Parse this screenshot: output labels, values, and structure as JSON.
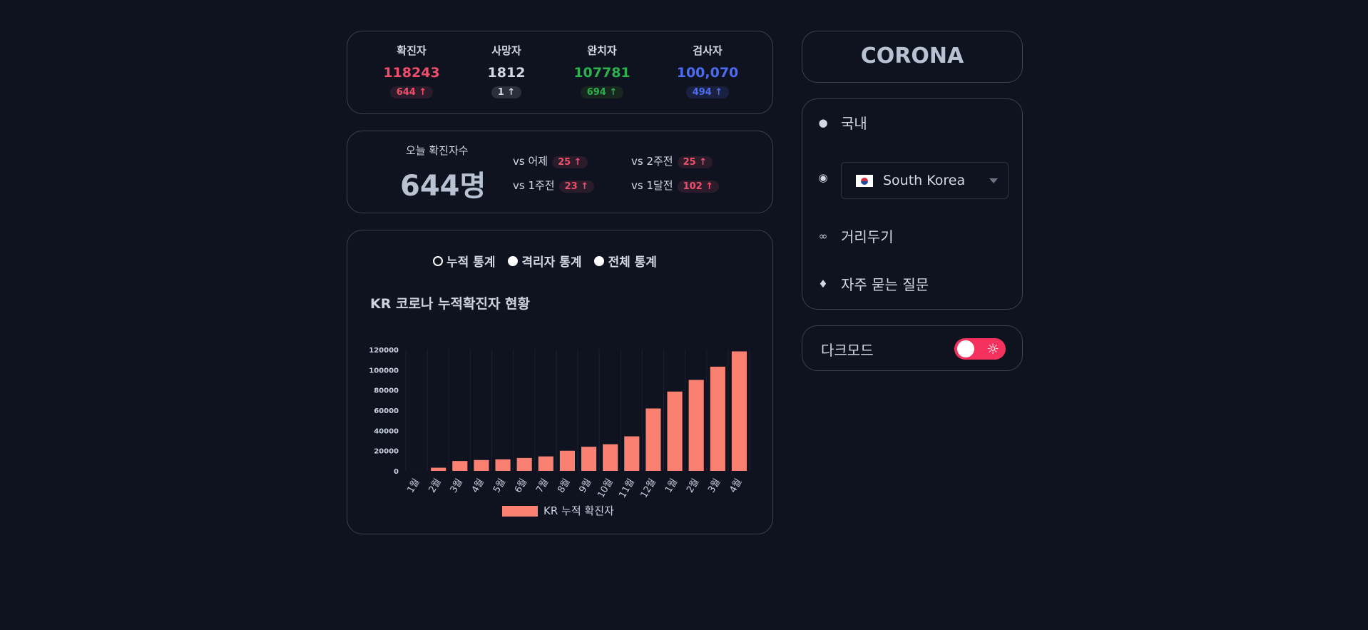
{
  "stats": [
    {
      "label": "확진자",
      "value": "118243",
      "delta": "644",
      "color": "#f24e6b",
      "badge_bg": "#2a1c2a"
    },
    {
      "label": "사망자",
      "value": "1812",
      "delta": "1",
      "color": "#d3d8e2",
      "badge_bg": "#2a2f3b"
    },
    {
      "label": "완치자",
      "value": "107781",
      "delta": "694",
      "color": "#2bb24c",
      "badge_bg": "#17261e"
    },
    {
      "label": "검사자",
      "value": "100,070",
      "delta": "494",
      "color": "#4d6cf2",
      "badge_bg": "#1a2040"
    }
  ],
  "arrow": "↑",
  "today": {
    "label": "오늘 확진자수",
    "value": "644명",
    "comparisons": [
      {
        "label": "vs 어제",
        "value": "25 ↑"
      },
      {
        "label": "vs 2주전",
        "value": "25 ↑"
      },
      {
        "label": "vs 1주전",
        "value": "23 ↑"
      },
      {
        "label": "vs 1달전",
        "value": "102 ↑"
      }
    ]
  },
  "radios": [
    {
      "label": "누적 통계",
      "selected": true
    },
    {
      "label": "격리자 통계",
      "selected": false
    },
    {
      "label": "전체 통계",
      "selected": false
    }
  ],
  "chart_data": {
    "type": "bar",
    "title": "KR 코로나 누적확진자 현황",
    "categories": [
      "1월",
      "2월",
      "3월",
      "4월",
      "5월",
      "6월",
      "7월",
      "8월",
      "9월",
      "10월",
      "11월",
      "12월",
      "1월",
      "2월",
      "3월",
      "4월"
    ],
    "series": [
      {
        "name": "KR 누적 확진자",
        "color": "#fa8072",
        "values": [
          11,
          3150,
          9786,
          10765,
          11468,
          12800,
          14336,
          19947,
          23889,
          26385,
          34201,
          61769,
          78508,
          90029,
          103088,
          118243
        ]
      }
    ],
    "ylim": [
      0,
      120000
    ],
    "yticks": [
      0,
      20000,
      40000,
      60000,
      80000,
      100000,
      120000
    ],
    "grid": true,
    "legend": "bottom"
  },
  "brand": "CORONA",
  "menu": {
    "domestic": "국내",
    "country": "South Korea",
    "distancing": "거리두기",
    "faq": "자주 묻는 질문"
  },
  "darkmode": {
    "label": "다크모드"
  },
  "icons": {
    "domestic": "korea-map-icon",
    "country": "globe-icon",
    "distancing": "route-icon",
    "faq": "question-diamond-icon",
    "toggle": "sun-icon"
  }
}
